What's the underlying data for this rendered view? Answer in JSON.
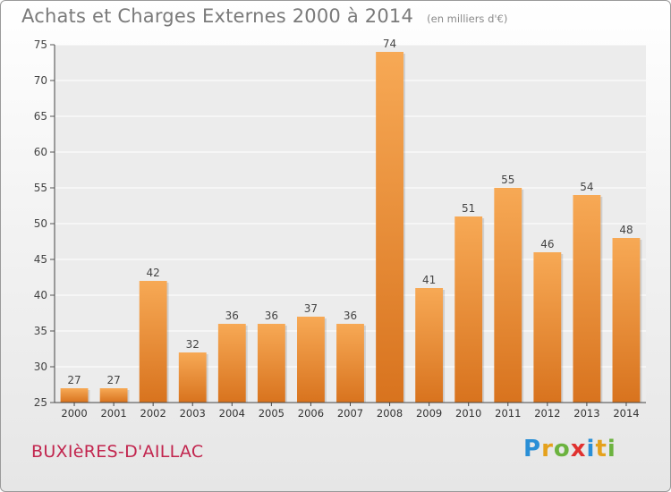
{
  "header": {
    "title": "Achats et Charges Externes 2000 à 2014",
    "subtitle": "(en milliers d'€)"
  },
  "footer": {
    "commune": "BUXIèRES-D'AILLAC",
    "logo_letters": [
      {
        "char": "P",
        "color": "#2a8fd6"
      },
      {
        "char": "r",
        "color": "#e5a11c"
      },
      {
        "char": "o",
        "color": "#6cb33f"
      },
      {
        "char": "x",
        "color": "#e0312f"
      },
      {
        "char": "i",
        "color": "#2a8fd6"
      },
      {
        "char": "t",
        "color": "#e5a11c"
      },
      {
        "char": "i",
        "color": "#6cb33f"
      }
    ]
  },
  "chart_data": {
    "type": "bar",
    "title": "Achats et Charges Externes 2000 à 2014",
    "subtitle": "(en milliers d'€)",
    "categories": [
      "2000",
      "2001",
      "2002",
      "2003",
      "2004",
      "2005",
      "2006",
      "2007",
      "2008",
      "2009",
      "2010",
      "2011",
      "2012",
      "2013",
      "2014"
    ],
    "values": [
      27,
      27,
      42,
      32,
      36,
      36,
      37,
      36,
      74,
      41,
      51,
      55,
      46,
      54,
      48
    ],
    "ylim": [
      25,
      75
    ],
    "yticks": [
      25,
      30,
      35,
      40,
      45,
      50,
      55,
      60,
      65,
      70,
      75
    ],
    "grid": true,
    "bar_color_top": "#f7a955",
    "bar_color_bottom": "#d8731e",
    "xlabel": "",
    "ylabel": ""
  }
}
